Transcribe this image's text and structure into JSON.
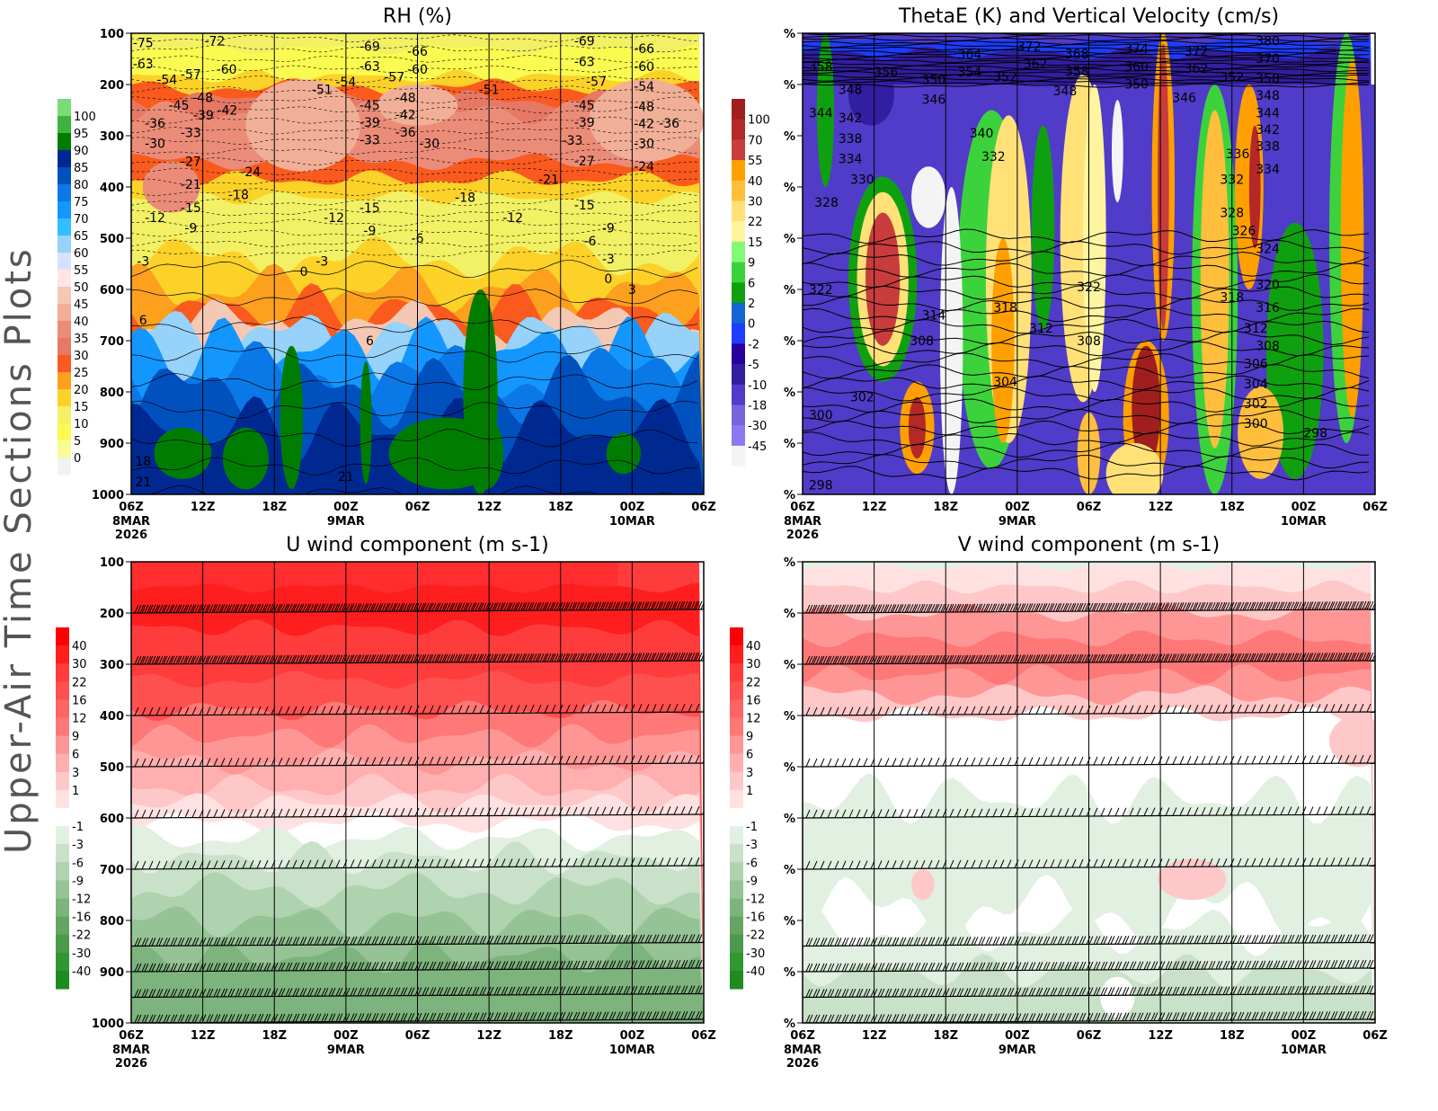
{
  "side_title": "Upper-Air Time Sections Plots",
  "time_ticks": [
    "06Z",
    "12Z",
    "18Z",
    "00Z",
    "06Z",
    "12Z",
    "18Z",
    "00Z",
    "06Z"
  ],
  "date_labels": [
    {
      "tick": 0,
      "lines": [
        "8MAR",
        "2026"
      ]
    },
    {
      "tick": 3,
      "lines": [
        "9MAR"
      ]
    },
    {
      "tick": 7,
      "lines": [
        "10MAR"
      ]
    }
  ],
  "chart_data": [
    {
      "id": "rh",
      "type": "heatmap",
      "title": "RH (%)",
      "y_ticks": [
        "100",
        "200",
        "300",
        "400",
        "500",
        "600",
        "700",
        "800",
        "900",
        "1000"
      ],
      "ylim": [
        100,
        1000
      ],
      "y_scale": "linear pressure (hPa), reversed",
      "colorbar": {
        "labels": [
          "100",
          "95",
          "90",
          "85",
          "80",
          "75",
          "70",
          "65",
          "60",
          "55",
          "50",
          "45",
          "40",
          "35",
          "30",
          "25",
          "20",
          "15",
          "10",
          "5",
          "0"
        ],
        "colors": [
          "#78dc78",
          "#3cb43c",
          "#007d00",
          "#002891",
          "#0050be",
          "#0a78e6",
          "#1496ff",
          "#32beff",
          "#96d2fa",
          "#d7e1ff",
          "#ffe6e6",
          "#f5c8b4",
          "#f0af96",
          "#eb8c78",
          "#e67864",
          "#fa5a1e",
          "#fca01e",
          "#fcd228",
          "#f2f064",
          "#fafa50",
          "#fafa96",
          "#f2f2f2"
        ]
      },
      "contour_labels": [
        {
          "t": "8 07",
          "p": 110,
          "v": "-75"
        },
        {
          "t": "8 13",
          "p": 115,
          "v": "-72"
        },
        {
          "t": "9 02",
          "p": 125,
          "v": "-69"
        },
        {
          "t": "9 06",
          "p": 135,
          "v": "-66"
        },
        {
          "t": "9 20",
          "p": 115,
          "v": "-69"
        },
        {
          "t": "10 01",
          "p": 130,
          "v": "-66"
        },
        {
          "t": "8 07",
          "p": 160,
          "v": "-63"
        },
        {
          "t": "8 09",
          "p": 190,
          "v": "-54"
        },
        {
          "t": "8 11",
          "p": 180,
          "v": "-57"
        },
        {
          "t": "8 14",
          "p": 170,
          "v": "-60"
        },
        {
          "t": "8 22",
          "p": 210,
          "v": "-51"
        },
        {
          "t": "9 00",
          "p": 195,
          "v": "-54"
        },
        {
          "t": "9 02",
          "p": 155,
          "v": "-63"
        },
        {
          "t": "9 03",
          "p": 185,
          "v": "-57"
        },
        {
          "t": "9 06",
          "p": 170,
          "v": "-60"
        },
        {
          "t": "9 12",
          "p": 210,
          "v": "-51"
        },
        {
          "t": "9 20",
          "p": 155,
          "v": "-63"
        },
        {
          "t": "9 21",
          "p": 185,
          "v": "-57"
        },
        {
          "t": "10 01",
          "p": 165,
          "v": "-60"
        },
        {
          "t": "10 01",
          "p": 195,
          "v": "-54"
        },
        {
          "t": "8 10",
          "p": 240,
          "v": "-45"
        },
        {
          "t": "8 11",
          "p": 260,
          "v": "-39"
        },
        {
          "t": "8 12",
          "p": 225,
          "v": "-48"
        },
        {
          "t": "8 13",
          "p": 250,
          "v": "-42"
        },
        {
          "t": "8 08",
          "p": 275,
          "v": "-36"
        },
        {
          "t": "8 11",
          "p": 285,
          "v": "-33"
        },
        {
          "t": "8 08",
          "p": 315,
          "v": "-30"
        },
        {
          "t": "8 11",
          "p": 350,
          "v": "-27"
        },
        {
          "t": "8 16",
          "p": 370,
          "v": "-24"
        },
        {
          "t": "8 11",
          "p": 395,
          "v": "-21"
        },
        {
          "t": "8 15",
          "p": 415,
          "v": "-18"
        },
        {
          "t": "8 11",
          "p": 440,
          "v": "-15"
        },
        {
          "t": "8 08",
          "p": 460,
          "v": "-12"
        },
        {
          "t": "8 11",
          "p": 480,
          "v": "-9"
        },
        {
          "t": "9 02",
          "p": 240,
          "v": "-45"
        },
        {
          "t": "9 02",
          "p": 265,
          "v": "-39"
        },
        {
          "t": "9 02",
          "p": 290,
          "v": "-33"
        },
        {
          "t": "9 05",
          "p": 225,
          "v": "-48"
        },
        {
          "t": "9 05",
          "p": 250,
          "v": "-42"
        },
        {
          "t": "9 05",
          "p": 275,
          "v": "-36"
        },
        {
          "t": "9 07",
          "p": 315,
          "v": "-30"
        },
        {
          "t": "9 10",
          "p": 420,
          "v": "-18"
        },
        {
          "t": "9 02",
          "p": 440,
          "v": "-15"
        },
        {
          "t": "8 23",
          "p": 460,
          "v": "-12"
        },
        {
          "t": "9 02",
          "p": 485,
          "v": "-9"
        },
        {
          "t": "9 06",
          "p": 500,
          "v": "-6"
        },
        {
          "t": "9 14",
          "p": 460,
          "v": "-12"
        },
        {
          "t": "9 17",
          "p": 385,
          "v": "-21"
        },
        {
          "t": "9 20",
          "p": 240,
          "v": "-45"
        },
        {
          "t": "9 20",
          "p": 265,
          "v": "-39"
        },
        {
          "t": "9 19",
          "p": 300,
          "v": "-33"
        },
        {
          "t": "9 20",
          "p": 340,
          "v": "-27"
        },
        {
          "t": "9 20",
          "p": 435,
          "v": "-15"
        },
        {
          "t": "10 01",
          "p": 225,
          "v": "-48"
        },
        {
          "t": "10 01",
          "p": 250,
          "v": "-42"
        },
        {
          "t": "10 01",
          "p": 275,
          "v": "-36"
        },
        {
          "t": "10 01",
          "p": 315,
          "v": "-30"
        },
        {
          "t": "10 01",
          "p": 360,
          "v": "-24"
        },
        {
          "t": "9 22",
          "p": 480,
          "v": "-9"
        },
        {
          "t": "9 21",
          "p": 505,
          "v": "-6"
        },
        {
          "t": "9 22",
          "p": 540,
          "v": "-3"
        },
        {
          "t": "9 22",
          "p": 570,
          "v": "0"
        },
        {
          "t": "10 00",
          "p": 600,
          "v": "3"
        },
        {
          "t": "8 07",
          "p": 545,
          "v": "-3"
        },
        {
          "t": "8 22",
          "p": 545,
          "v": "-3"
        },
        {
          "t": "8 21",
          "p": 565,
          "v": "0"
        },
        {
          "t": "8 07",
          "p": 660,
          "v": "6"
        },
        {
          "t": "9 02",
          "p": 700,
          "v": "6"
        },
        {
          "t": "8 07",
          "p": 935,
          "v": "18"
        },
        {
          "t": "8 07",
          "p": 975,
          "v": "21"
        },
        {
          "t": "9 00",
          "p": 965,
          "v": "21"
        }
      ]
    },
    {
      "id": "thetae",
      "type": "heatmap",
      "title": "ThetaE (K) and Vertical Velocity (cm/s)",
      "y_ticks": [
        "%",
        "%",
        "%",
        "%",
        "%",
        "%",
        "%",
        "%",
        "%",
        "%"
      ],
      "ylim": [
        100,
        1000
      ],
      "colorbar": {
        "labels": [
          "100",
          "70",
          "55",
          "40",
          "30",
          "22",
          "15",
          "9",
          "6",
          "2",
          "0",
          "-2",
          "-5",
          "-10",
          "-18",
          "-30",
          "-45"
        ],
        "colors": [
          "#a01e1e",
          "#b42828",
          "#c83c3c",
          "#ffa000",
          "#ffbe3c",
          "#ffe178",
          "#fff5a0",
          "#82fa78",
          "#3cd23c",
          "#0fa00f",
          "#1464d2",
          "#1e3cff",
          "#2800a0",
          "#321ea0",
          "#503cc8",
          "#7864dc",
          "#8c78f0",
          "#f4f4f4"
        ]
      },
      "contour_labels": [
        {
          "t": "8 07",
          "p": 165,
          "v": "358"
        },
        {
          "t": "8 13",
          "p": 175,
          "v": "356"
        },
        {
          "t": "8 10",
          "p": 210,
          "v": "348"
        },
        {
          "t": "8 17",
          "p": 190,
          "v": "350"
        },
        {
          "t": "8 17",
          "p": 220,
          "v": "346"
        },
        {
          "t": "8 20",
          "p": 175,
          "v": "354"
        },
        {
          "t": "8 20",
          "p": 150,
          "v": "364"
        },
        {
          "t": "8 23",
          "p": 185,
          "v": "352"
        },
        {
          "t": "9 01",
          "p": 125,
          "v": "372"
        },
        {
          "t": "9 01",
          "p": 160,
          "v": "362"
        },
        {
          "t": "9 05",
          "p": 140,
          "v": "368"
        },
        {
          "t": "9 05",
          "p": 165,
          "v": "358"
        },
        {
          "t": "9 04",
          "p": 195,
          "v": "348"
        },
        {
          "t": "9 10",
          "p": 130,
          "v": "374"
        },
        {
          "t": "9 10",
          "p": 165,
          "v": "360"
        },
        {
          "t": "9 10",
          "p": 190,
          "v": "350"
        },
        {
          "t": "9 15",
          "p": 135,
          "v": "372"
        },
        {
          "t": "9 15",
          "p": 160,
          "v": "362"
        },
        {
          "t": "9 14",
          "p": 225,
          "v": "346"
        },
        {
          "t": "9 18",
          "p": 185,
          "v": "352"
        },
        {
          "t": "9 21",
          "p": 115,
          "v": "380"
        },
        {
          "t": "9 21",
          "p": 140,
          "v": "370"
        },
        {
          "t": "9 21",
          "p": 170,
          "v": "358"
        },
        {
          "t": "9 21",
          "p": 195,
          "v": "348"
        },
        {
          "t": "8 07",
          "p": 255,
          "v": "344"
        },
        {
          "t": "8 10",
          "p": 265,
          "v": "342"
        },
        {
          "t": "8 10",
          "p": 305,
          "v": "338"
        },
        {
          "t": "8 10",
          "p": 345,
          "v": "334"
        },
        {
          "t": "8 11",
          "p": 385,
          "v": "330"
        },
        {
          "t": "8 21",
          "p": 295,
          "v": "340"
        },
        {
          "t": "8 22",
          "p": 340,
          "v": "332"
        },
        {
          "t": "8 08",
          "p": 430,
          "v": "328"
        },
        {
          "t": "8 07",
          "p": 600,
          "v": "322"
        },
        {
          "t": "8 17",
          "p": 650,
          "v": "314"
        },
        {
          "t": "8 16",
          "p": 700,
          "v": "308"
        },
        {
          "t": "8 23",
          "p": 635,
          "v": "318"
        },
        {
          "t": "9 02",
          "p": 675,
          "v": "312"
        },
        {
          "t": "9 06",
          "p": 700,
          "v": "308"
        },
        {
          "t": "9 06",
          "p": 595,
          "v": "322"
        },
        {
          "t": "8 23",
          "p": 780,
          "v": "304"
        },
        {
          "t": "8 11",
          "p": 810,
          "v": "302"
        },
        {
          "t": "8 07",
          "p": 845,
          "v": "300"
        },
        {
          "t": "8 07",
          "p": 990,
          "v": "298"
        },
        {
          "t": "9 21",
          "p": 255,
          "v": "344"
        },
        {
          "t": "9 21",
          "p": 270,
          "v": "342"
        },
        {
          "t": "9 21",
          "p": 320,
          "v": "338"
        },
        {
          "t": "9 19",
          "p": 335,
          "v": "336"
        },
        {
          "t": "9 21",
          "p": 365,
          "v": "334"
        },
        {
          "t": "9 18",
          "p": 385,
          "v": "332"
        },
        {
          "t": "9 18",
          "p": 450,
          "v": "328"
        },
        {
          "t": "9 19",
          "p": 485,
          "v": "326"
        },
        {
          "t": "9 21",
          "p": 520,
          "v": "324"
        },
        {
          "t": "9 21",
          "p": 590,
          "v": "320"
        },
        {
          "t": "9 18",
          "p": 615,
          "v": "318"
        },
        {
          "t": "9 21",
          "p": 635,
          "v": "316"
        },
        {
          "t": "9 20",
          "p": 675,
          "v": "312"
        },
        {
          "t": "9 21",
          "p": 710,
          "v": "308"
        },
        {
          "t": "9 20",
          "p": 745,
          "v": "306"
        },
        {
          "t": "9 20",
          "p": 775,
          "v": "304"
        },
        {
          "t": "9 20",
          "p": 805,
          "v": "302"
        },
        {
          "t": "9 20",
          "p": 835,
          "v": "300"
        },
        {
          "t": "10 01",
          "p": 880,
          "v": "298"
        }
      ]
    },
    {
      "id": "u",
      "type": "heatmap",
      "title": "U wind component (m s-1)",
      "y_ticks": [
        "100",
        "200",
        "300",
        "400",
        "500",
        "600",
        "700",
        "800",
        "900",
        "1000"
      ],
      "ylim": [
        100,
        1000
      ],
      "colorbar": {
        "labels": [
          "40",
          "30",
          "22",
          "16",
          "12",
          "9",
          "6",
          "3",
          "1",
          "-1",
          "-3",
          "-6",
          "-9",
          "-12",
          "-16",
          "-22",
          "-30",
          "-40"
        ],
        "colors": [
          "#ff0000",
          "#ff1e1e",
          "#ff3c3c",
          "#ff5050",
          "#ff6464",
          "#ff7878",
          "#ff9696",
          "#ffafaf",
          "#ffc8c8",
          "#ffe1e1",
          "#ffffff",
          "#e1f0e1",
          "#c8e1c8",
          "#afd2af",
          "#96c396",
          "#7db47d",
          "#64a564",
          "#4b9b4b",
          "#329632",
          "#1e8c1e"
        ]
      },
      "wind_barb_levels": [
        200,
        300,
        400,
        500,
        600,
        700,
        850,
        900,
        950,
        1000
      ]
    },
    {
      "id": "v",
      "type": "heatmap",
      "title": "V wind component (m s-1)",
      "y_ticks": [
        "%",
        "%",
        "%",
        "%",
        "%",
        "%",
        "%",
        "%",
        "%",
        "%"
      ],
      "ylim": [
        100,
        1000
      ],
      "colorbar": {
        "labels": [
          "40",
          "30",
          "22",
          "16",
          "12",
          "9",
          "6",
          "3",
          "1",
          "-1",
          "-3",
          "-6",
          "-9",
          "-12",
          "-16",
          "-22",
          "-30",
          "-40"
        ],
        "colors": [
          "#ff0000",
          "#ff1e1e",
          "#ff3c3c",
          "#ff5050",
          "#ff6464",
          "#ff7878",
          "#ff9696",
          "#ffafaf",
          "#ffc8c8",
          "#ffe1e1",
          "#ffffff",
          "#e1f0e1",
          "#c8e1c8",
          "#afd2af",
          "#96c396",
          "#7db47d",
          "#64a564",
          "#4b9b4b",
          "#329632",
          "#1e8c1e"
        ]
      },
      "wind_barb_levels": [
        200,
        300,
        400,
        500,
        600,
        700,
        850,
        900,
        950,
        1000
      ]
    }
  ]
}
